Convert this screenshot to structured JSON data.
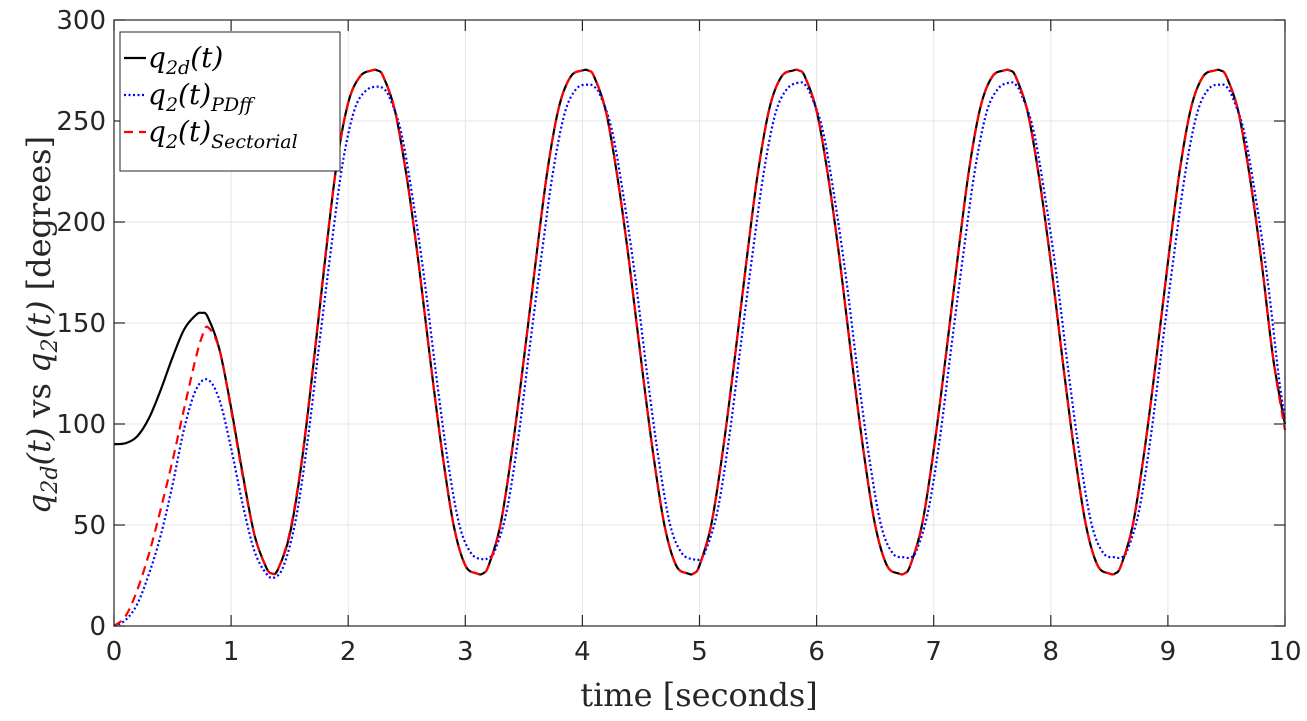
{
  "chart_data": {
    "type": "line",
    "xlabel": "time [seconds]",
    "ylabel_parts": {
      "q": "q",
      "sub_2d": "2d",
      "t_arg": "(t)",
      "vs": " vs ",
      "sub_2": "2",
      "unit": " [degrees]"
    },
    "xlim": [
      0,
      10
    ],
    "ylim": [
      0,
      300
    ],
    "xticks": [
      0,
      1,
      2,
      3,
      4,
      5,
      6,
      7,
      8,
      9,
      10
    ],
    "yticks": [
      0,
      50,
      100,
      150,
      200,
      250,
      300
    ],
    "grid": true,
    "legend_position": "top-left",
    "series": [
      {
        "name": "q2d(t)",
        "legend": {
          "base": "q",
          "sub": "2d",
          "arg": "(t)",
          "post": ""
        },
        "color": "#000000",
        "dash": "solid",
        "x": [
          0,
          0.1,
          0.2,
          0.3,
          0.4,
          0.5,
          0.6,
          0.7,
          0.75,
          0.8,
          0.9,
          1.0,
          1.1,
          1.2,
          1.3,
          1.35,
          1.4,
          1.5,
          1.6,
          1.7,
          1.8,
          1.9,
          2.0,
          2.1,
          2.2,
          2.25,
          2.3,
          2.4,
          2.5,
          2.6,
          2.7,
          2.8,
          2.9,
          3.0,
          3.1,
          3.15,
          3.2,
          3.3,
          3.4,
          3.5,
          3.6,
          3.7,
          3.8,
          3.9,
          4.0,
          4.05,
          4.1,
          4.2,
          4.3,
          4.4,
          4.5,
          4.6,
          4.7,
          4.8,
          4.9,
          4.95,
          5.0,
          5.1,
          5.2,
          5.3,
          5.4,
          5.5,
          5.6,
          5.7,
          5.8,
          5.85,
          5.9,
          6.0,
          6.1,
          6.2,
          6.3,
          6.4,
          6.5,
          6.6,
          6.7,
          6.75,
          6.8,
          6.9,
          7.0,
          7.1,
          7.2,
          7.3,
          7.4,
          7.5,
          7.6,
          7.65,
          7.7,
          7.8,
          7.9,
          8.0,
          8.1,
          8.2,
          8.3,
          8.4,
          8.5,
          8.55,
          8.6,
          8.7,
          8.8,
          8.9,
          9.0,
          9.1,
          9.2,
          9.3,
          9.4,
          9.45,
          9.5,
          9.6,
          9.7,
          9.8,
          9.9,
          10.0
        ],
        "values": [
          90,
          90.5,
          94,
          103,
          117,
          133,
          147,
          154,
          155,
          153,
          137,
          108,
          75,
          45,
          29,
          26,
          28,
          45,
          80,
          128,
          180,
          228,
          259,
          272,
          275,
          275,
          272,
          255,
          222,
          180,
          132,
          87,
          50,
          30,
          26,
          26,
          30,
          50,
          87,
          132,
          180,
          225,
          257,
          272,
          275,
          275,
          272,
          255,
          222,
          180,
          132,
          87,
          50,
          30,
          26,
          26,
          30,
          50,
          87,
          132,
          180,
          225,
          257,
          272,
          275,
          275,
          272,
          255,
          222,
          180,
          132,
          87,
          50,
          30,
          26,
          26,
          30,
          50,
          87,
          132,
          180,
          225,
          257,
          272,
          275,
          275,
          272,
          255,
          222,
          180,
          132,
          87,
          50,
          30,
          26,
          26,
          30,
          50,
          87,
          132,
          180,
          225,
          257,
          272,
          275,
          275,
          272,
          255,
          222,
          180,
          132,
          100
        ]
      },
      {
        "name": "q2(t)PDff",
        "legend": {
          "base": "q",
          "sub": "2",
          "arg": "(t)",
          "post": "PDff"
        },
        "color": "#0000ff",
        "dash": "dotted",
        "x": [
          0,
          0.1,
          0.2,
          0.3,
          0.4,
          0.5,
          0.6,
          0.7,
          0.8,
          0.9,
          1.0,
          1.1,
          1.2,
          1.3,
          1.37,
          1.45,
          1.55,
          1.65,
          1.75,
          1.85,
          1.95,
          2.05,
          2.15,
          2.25,
          2.3,
          2.35,
          2.45,
          2.55,
          2.65,
          2.75,
          2.85,
          2.95,
          3.05,
          3.15,
          3.2,
          3.25,
          3.35,
          3.45,
          3.55,
          3.65,
          3.75,
          3.85,
          3.95,
          4.05,
          4.1,
          4.15,
          4.25,
          4.35,
          4.45,
          4.55,
          4.65,
          4.75,
          4.85,
          4.95,
          5.0,
          5.05,
          5.15,
          5.25,
          5.35,
          5.45,
          5.55,
          5.65,
          5.75,
          5.85,
          5.9,
          5.95,
          6.05,
          6.15,
          6.25,
          6.35,
          6.45,
          6.55,
          6.65,
          6.75,
          6.8,
          6.85,
          6.95,
          7.05,
          7.15,
          7.25,
          7.35,
          7.45,
          7.55,
          7.65,
          7.7,
          7.75,
          7.85,
          7.95,
          8.05,
          8.15,
          8.25,
          8.35,
          8.45,
          8.55,
          8.6,
          8.65,
          8.75,
          8.85,
          8.95,
          9.05,
          9.15,
          9.25,
          9.35,
          9.45,
          9.5,
          9.55,
          9.65,
          9.75,
          9.85,
          9.95,
          10.0
        ],
        "values": [
          0,
          3,
          11,
          26,
          45,
          70,
          98,
          117,
          122,
          112,
          88,
          60,
          37,
          26,
          24,
          30,
          52,
          90,
          138,
          185,
          228,
          255,
          265,
          267,
          266,
          262,
          245,
          212,
          172,
          125,
          82,
          50,
          36,
          33,
          34,
          37,
          56,
          92,
          138,
          183,
          225,
          254,
          266,
          268,
          267,
          263,
          246,
          213,
          173,
          126,
          83,
          50,
          36,
          33,
          33,
          37,
          56,
          92,
          138,
          183,
          225,
          254,
          266,
          269,
          268,
          263,
          246,
          213,
          173,
          126,
          83,
          50,
          36,
          34,
          34,
          37,
          56,
          92,
          138,
          183,
          225,
          254,
          266,
          269,
          268,
          263,
          246,
          213,
          173,
          126,
          83,
          50,
          36,
          34,
          34,
          37,
          56,
          92,
          138,
          183,
          225,
          254,
          266,
          268,
          267,
          262,
          245,
          212,
          172,
          122,
          103
        ]
      },
      {
        "name": "q2(t)Sectorial",
        "legend": {
          "base": "q",
          "sub": "2",
          "arg": "(t)",
          "post": "Sectorial"
        },
        "color": "#ff0000",
        "dash": "dashed",
        "x": [
          0,
          0.1,
          0.2,
          0.3,
          0.4,
          0.5,
          0.6,
          0.7,
          0.75,
          0.8,
          0.9,
          1.0,
          1.1,
          1.2,
          1.3,
          1.35,
          1.4,
          1.5,
          1.6,
          1.7,
          1.8,
          1.9,
          2.0,
          2.1,
          2.2,
          2.25,
          2.3,
          2.4,
          2.5,
          2.6,
          2.7,
          2.8,
          2.9,
          3.0,
          3.1,
          3.15,
          3.2,
          3.3,
          3.4,
          3.5,
          3.6,
          3.7,
          3.8,
          3.9,
          4.0,
          4.05,
          4.1,
          4.2,
          4.3,
          4.4,
          4.5,
          4.6,
          4.7,
          4.8,
          4.9,
          4.95,
          5.0,
          5.1,
          5.2,
          5.3,
          5.4,
          5.5,
          5.6,
          5.7,
          5.8,
          5.85,
          5.9,
          6.0,
          6.1,
          6.2,
          6.3,
          6.4,
          6.5,
          6.6,
          6.7,
          6.75,
          6.8,
          6.9,
          7.0,
          7.1,
          7.2,
          7.3,
          7.4,
          7.5,
          7.6,
          7.65,
          7.7,
          7.8,
          7.9,
          8.0,
          8.1,
          8.2,
          8.3,
          8.4,
          8.5,
          8.55,
          8.6,
          8.7,
          8.8,
          8.9,
          9.0,
          9.1,
          9.2,
          9.3,
          9.4,
          9.45,
          9.5,
          9.6,
          9.7,
          9.8,
          9.9,
          10.0
        ],
        "values": [
          0,
          5,
          18,
          36,
          58,
          82,
          108,
          133,
          143,
          148,
          137,
          107,
          74,
          45,
          29,
          26,
          28,
          46,
          81,
          129,
          181,
          228,
          259,
          272,
          275,
          275,
          272,
          255,
          222,
          180,
          132,
          87,
          50,
          30,
          26,
          26,
          30,
          50,
          87,
          132,
          180,
          225,
          257,
          272,
          275,
          275,
          272,
          255,
          222,
          180,
          132,
          87,
          50,
          30,
          26,
          26,
          30,
          50,
          87,
          132,
          180,
          225,
          257,
          272,
          275,
          275,
          272,
          255,
          222,
          180,
          132,
          87,
          50,
          30,
          26,
          26,
          30,
          50,
          87,
          132,
          180,
          225,
          257,
          272,
          275,
          275,
          272,
          255,
          222,
          180,
          132,
          87,
          50,
          30,
          26,
          26,
          30,
          50,
          87,
          132,
          180,
          225,
          257,
          272,
          275,
          275,
          272,
          255,
          222,
          180,
          132,
          97
        ]
      }
    ]
  }
}
